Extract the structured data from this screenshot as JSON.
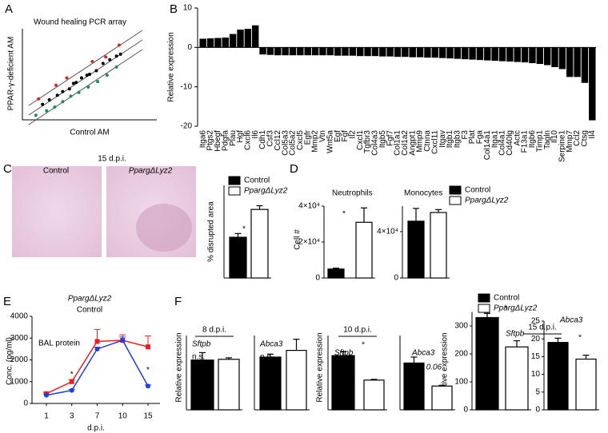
{
  "chart_data": [
    {
      "type": "scatter",
      "panel": "A",
      "title": "Wound healing PCR array",
      "xlabel": "Control AM",
      "ylabel": "PPAR-γ-deficient AM",
      "xlim": [
        0,
        10
      ],
      "ylim": [
        0,
        10
      ],
      "series": [
        {
          "color": "#d62728",
          "x": [
            1.2,
            2.5,
            3.3,
            5.2,
            6.2,
            7.2
          ],
          "y": [
            2.3,
            3.8,
            4.6,
            6.4,
            6.9,
            8.2
          ]
        },
        {
          "color": "#000000",
          "x": [
            1.5,
            2,
            2.6,
            3,
            3.5,
            4,
            4.4,
            5,
            5.5,
            6,
            6.5,
            7,
            7.3,
            3.8,
            4.8
          ],
          "y": [
            1.7,
            2.2,
            2.7,
            3.1,
            3.4,
            4.1,
            4.6,
            5,
            5.4,
            6.2,
            6.6,
            7,
            7.2,
            4,
            4.9
          ]
        },
        {
          "color": "#1a8a6a",
          "x": [
            1,
            1.8,
            2.4,
            3,
            3.6,
            4.2,
            4.9,
            5.6,
            6.3,
            7
          ],
          "y": [
            0.5,
            1,
            1.4,
            2,
            2.6,
            3,
            3.6,
            4.2,
            4.9,
            5.8
          ]
        }
      ]
    },
    {
      "type": "bar",
      "panel": "B",
      "ylabel": "Relative expression",
      "color": "#000000",
      "ylim": [
        -20,
        10
      ],
      "yticks": [
        -20,
        -10,
        0,
        10
      ],
      "categories": [
        "Itga6",
        "Ptgs2",
        "Hbegf",
        "Pdgfa",
        "Plau",
        "Hgf",
        "Cxcl6",
        "Il6",
        "Cdh1",
        "Csf3",
        "Ccl12",
        "Col5a3",
        "Col5a2",
        "Cxcl5",
        "Egfr",
        "Mmp2",
        "Vtn",
        "Wnt5a",
        "Egf",
        "Fgf",
        "Il2",
        "Cxcl1",
        "Tgfbr3",
        "Col4a3",
        "Itgb5",
        "Fgf7",
        "Col1a1",
        "Col1a2",
        "Angpt1",
        "Mmp9",
        "Ctnna",
        "Cxcl11",
        "Itgav",
        "Itgb1",
        "Itgb3",
        "F3",
        "Plat",
        "Fga",
        "Col14a1",
        "Itga1",
        "Col4a1",
        "Cd40lg",
        "Actc",
        "F13a1",
        "Itgb6",
        "Timp1",
        "Tagln",
        "Il10",
        "Serpine1",
        "Mmp7",
        "Ccl2",
        "Ctsg",
        "Il4"
      ],
      "values": [
        2.2,
        2.3,
        2.4,
        2.5,
        3.4,
        4.5,
        4.7,
        5.6,
        -1.8,
        -1.9,
        -2,
        -2,
        -2,
        -2,
        -2,
        -2,
        -2,
        -2,
        -2.1,
        -2.1,
        -2.1,
        -2.2,
        -2.2,
        -2.2,
        -2.3,
        -2.3,
        -2.4,
        -2.4,
        -2.5,
        -2.5,
        -2.6,
        -2.6,
        -2.7,
        -2.8,
        -2.9,
        -3,
        -3.1,
        -3.2,
        -3.3,
        -3.4,
        -3.5,
        -3.6,
        -3.7,
        -3.8,
        -4,
        -4.2,
        -4.5,
        -5,
        -5.5,
        -7.5,
        -7.5,
        -9,
        -18.5
      ]
    },
    {
      "type": "bar-pair",
      "panel": "C",
      "subtitle": "15 d.p.i.",
      "image_labels": [
        "Control",
        "PpargΔLyz2"
      ],
      "ylabel": "% disrupted area",
      "series": [
        {
          "name": "Control",
          "color": "#000000"
        },
        {
          "name": "PpargΔLyz2",
          "color": "#ffffff"
        }
      ],
      "panels": [
        {
          "values": [
            6.6,
            11.1
          ],
          "errors": [
            0.6,
            0.6
          ],
          "ylim": [
            0,
            15
          ],
          "annotation": "*"
        }
      ]
    },
    {
      "type": "bar-pair",
      "panel": "D",
      "ylabel": "Cell #",
      "series": [
        {
          "name": "Control",
          "color": "#000000"
        },
        {
          "name": "PpargΔLyz2",
          "color": "#ffffff"
        }
      ],
      "panels": [
        {
          "title": "Neutrophils",
          "values": [
            5000,
            31000
          ],
          "errors": [
            500,
            8000
          ],
          "ylim": [
            0,
            40000
          ],
          "yticks": [
            0,
            {
              "value": 20000,
              "label": "2×10⁴"
            },
            {
              "value": 40000,
              "label": "4×10⁴"
            }
          ],
          "annotation": "*"
        },
        {
          "title": "Monocytes",
          "values": [
            49000,
            56500
          ],
          "errors": [
            11000,
            2500
          ],
          "ylim": [
            0,
            62000
          ],
          "yticks": [
            0,
            {
              "value": 40000,
              "label": "4×10⁴"
            }
          ]
        }
      ]
    },
    {
      "type": "line",
      "panel": "E",
      "ylabel": "Conc. (pg/ml)",
      "xlabel": "d.p.i.",
      "annotation": "BAL protein",
      "categories": [
        1,
        3,
        7,
        10,
        15
      ],
      "ylim": [
        0,
        4000
      ],
      "yticks": [
        0,
        1000,
        2000,
        3000,
        4000
      ],
      "significance": [
        null,
        "*",
        null,
        null,
        "*"
      ],
      "series": [
        {
          "name": "PpargΔLyz2",
          "color": "#e8201f",
          "marker": "square",
          "values": [
            450,
            1000,
            2850,
            2900,
            2600
          ],
          "errors": [
            60,
            100,
            550,
            250,
            500
          ]
        },
        {
          "name": "Control",
          "color": "#1f3fe0",
          "marker": "circle",
          "values": [
            380,
            600,
            2500,
            2900,
            800
          ],
          "errors": [
            50,
            50,
            80,
            150,
            50
          ]
        }
      ]
    },
    {
      "type": "bar-pair",
      "panel": "F",
      "ylabel": "Relative expression",
      "group_titles": [
        "8 d.p.i.",
        "10 d.p.i.",
        "15 d.p.i."
      ],
      "series": [
        {
          "name": "Control",
          "color": "#000000"
        },
        {
          "name": "PpargΔLyz2",
          "color": "#ffffff"
        }
      ],
      "panels": [
        {
          "title": "Sftpb",
          "values": [
            67,
            68
          ],
          "errors": [
            10,
            2
          ],
          "ylim": [
            0,
            100
          ],
          "annotation": "n.s."
        },
        {
          "title": "Abca3",
          "values": [
            71,
            80
          ],
          "errors": [
            4,
            15
          ],
          "ylim": [
            0,
            100
          ],
          "annotation": "n.s."
        },
        {
          "title": "Sftpb",
          "values": [
            73,
            40
          ],
          "errors": [
            5,
            1
          ],
          "ylim": [
            0,
            100
          ],
          "annotation": "*"
        },
        {
          "title": "Abca3",
          "values": [
            63,
            32
          ],
          "errors": [
            8,
            1
          ],
          "ylim": [
            0,
            100
          ],
          "annotation": "P = 0.06"
        },
        {
          "title": "Sftpb",
          "values": [
            330,
            225
          ],
          "errors": [
            15,
            22
          ],
          "ylim": [
            0,
            350
          ],
          "yticks": [
            0,
            100,
            200,
            300
          ],
          "annotation": "*"
        },
        {
          "title": "Abca3",
          "values": [
            19,
            14.3
          ],
          "errors": [
            1.2,
            1.1
          ],
          "ylim": [
            0,
            25
          ],
          "yticks": [
            0,
            5,
            10,
            15,
            20,
            25
          ],
          "annotation": "*"
        }
      ]
    }
  ]
}
